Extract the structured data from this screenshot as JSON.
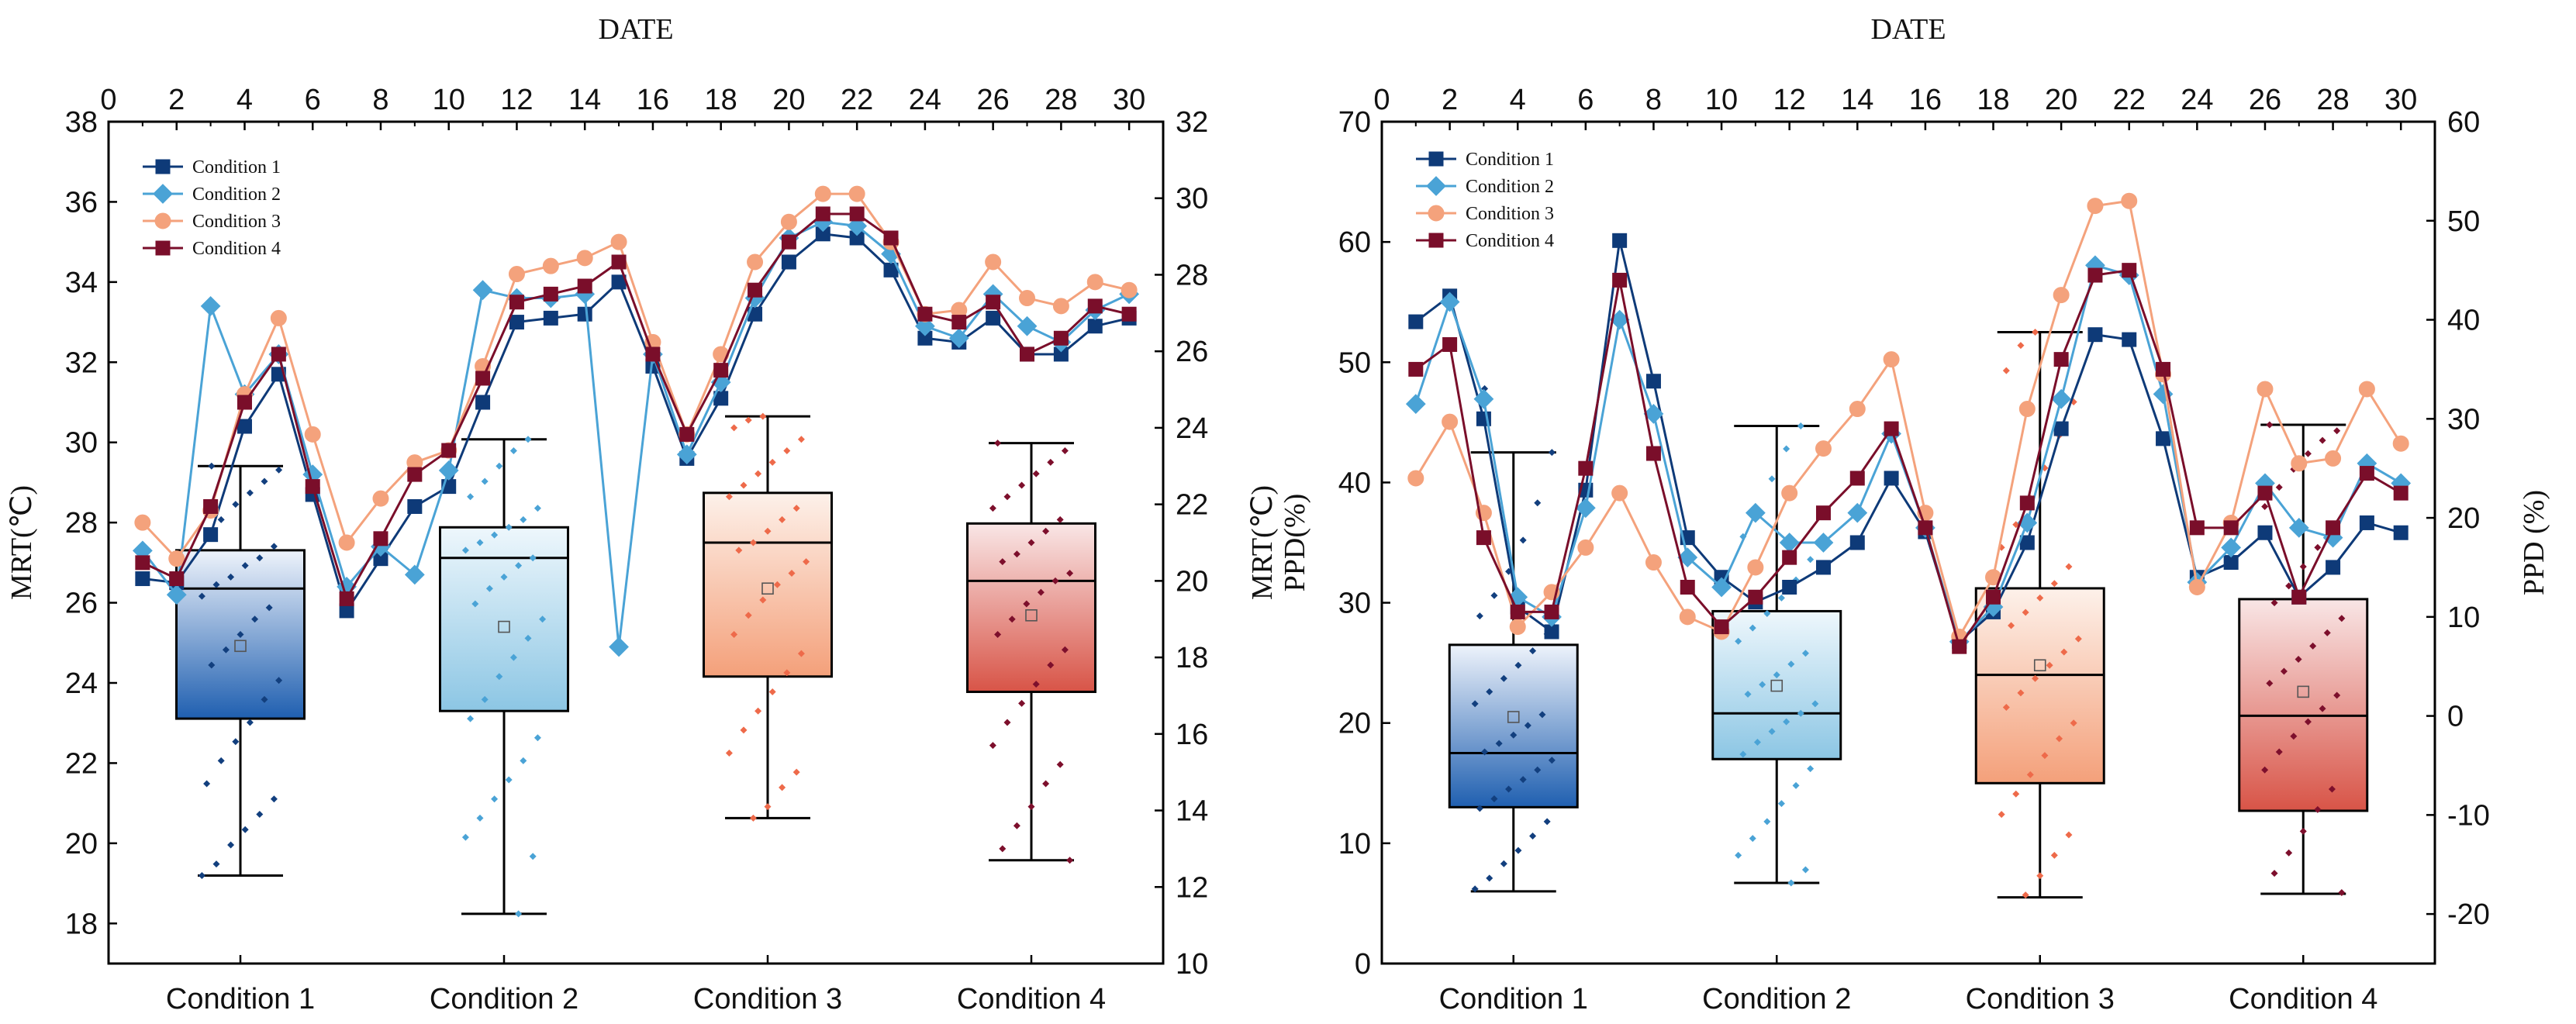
{
  "chart_data": [
    {
      "type": "box+line",
      "id": "mrt",
      "title": "",
      "top_xlabel": "DATE",
      "left_ylabel": "MRT(℃)",
      "right_ylabel": "MRT(℃)",
      "top_xlim": [
        0,
        31
      ],
      "top_xticks": [
        "0",
        "2",
        "4",
        "6",
        "8",
        "10",
        "12",
        "14",
        "16",
        "18",
        "20",
        "22",
        "24",
        "26",
        "28",
        "30"
      ],
      "left_ylim": [
        17,
        38
      ],
      "left_yticks": [
        "18",
        "20",
        "22",
        "24",
        "26",
        "28",
        "30",
        "32",
        "34",
        "36",
        "38"
      ],
      "right_ylim": [
        10,
        32
      ],
      "right_yticks": [
        "10",
        "12",
        "14",
        "16",
        "18",
        "20",
        "22",
        "24",
        "26",
        "28",
        "30",
        "32"
      ],
      "categories": [
        "Condition 1",
        "Condition 2",
        "Condition 3",
        "Condition 4"
      ],
      "box_axis": "right",
      "boxes": [
        {
          "name": "Condition 1",
          "whisker_low": 12.3,
          "q1": 16.4,
          "median": 19.8,
          "q3": 20.8,
          "whisker_high": 23.0,
          "mean": 18.3,
          "points": [
            12.3,
            12.6,
            13.1,
            13.5,
            13.9,
            14.3,
            14.7,
            15.3,
            15.8,
            16.3,
            16.9,
            17.4,
            17.8,
            18.2,
            18.6,
            19.0,
            19.3,
            19.6,
            19.9,
            20.1,
            20.4,
            20.6,
            20.9,
            21.2,
            21.6,
            22.0,
            22.3,
            22.6,
            22.9,
            23.0
          ]
        },
        {
          "name": "Condition 2",
          "whisker_low": 11.3,
          "q1": 16.6,
          "median": 20.6,
          "q3": 21.4,
          "whisker_high": 23.7,
          "mean": 18.8,
          "points": [
            11.3,
            12.8,
            13.3,
            13.8,
            14.3,
            14.8,
            15.3,
            15.9,
            16.4,
            16.9,
            17.5,
            18.0,
            18.5,
            19.0,
            19.4,
            19.8,
            20.1,
            20.4,
            20.6,
            20.8,
            21.0,
            21.2,
            21.4,
            21.6,
            21.9,
            22.2,
            22.6,
            23.0,
            23.4,
            23.7
          ]
        },
        {
          "name": "Condition 3",
          "whisker_low": 13.8,
          "q1": 17.5,
          "median": 21.0,
          "q3": 22.3,
          "whisker_high": 24.3,
          "mean": 19.8,
          "points": [
            13.8,
            14.1,
            14.6,
            15.0,
            15.5,
            16.1,
            16.6,
            17.1,
            17.6,
            18.1,
            18.6,
            19.1,
            19.5,
            19.9,
            20.2,
            20.5,
            20.8,
            21.0,
            21.3,
            21.6,
            21.9,
            22.2,
            22.5,
            22.8,
            23.1,
            23.4,
            23.7,
            24.0,
            24.2,
            24.3
          ]
        },
        {
          "name": "Condition 4",
          "whisker_low": 12.7,
          "q1": 17.1,
          "median": 20.0,
          "q3": 21.5,
          "whisker_high": 23.6,
          "mean": 19.1,
          "points": [
            12.7,
            13.0,
            13.6,
            14.1,
            14.7,
            15.2,
            15.7,
            16.3,
            16.8,
            17.3,
            17.8,
            18.2,
            18.6,
            19.0,
            19.4,
            19.7,
            20.0,
            20.2,
            20.5,
            20.7,
            21.0,
            21.3,
            21.6,
            21.9,
            22.2,
            22.5,
            22.8,
            23.1,
            23.4,
            23.6
          ]
        }
      ],
      "line_axis": "left",
      "line_x": [
        1,
        2,
        3,
        4,
        5,
        6,
        7,
        8,
        9,
        10,
        11,
        12,
        13,
        14,
        15,
        16,
        17,
        18,
        19,
        20,
        21,
        22,
        23,
        24,
        25,
        26,
        27,
        28,
        29,
        30
      ],
      "series": [
        {
          "name": "Condition 1",
          "marker": "square",
          "color": "#0e3a78",
          "values": [
            26.6,
            26.5,
            27.7,
            30.4,
            31.7,
            28.7,
            25.8,
            27.1,
            28.4,
            28.9,
            31.0,
            33.0,
            33.1,
            33.2,
            34.0,
            31.9,
            29.6,
            31.1,
            33.2,
            34.5,
            35.2,
            35.1,
            34.3,
            32.6,
            32.5,
            33.1,
            32.2,
            32.2,
            32.9,
            33.1
          ]
        },
        {
          "name": "Condition 2",
          "marker": "diamond",
          "color": "#4aa3d6",
          "values": [
            27.3,
            26.2,
            33.4,
            31.2,
            32.2,
            29.2,
            26.4,
            27.4,
            26.7,
            29.3,
            33.8,
            33.6,
            33.6,
            33.7,
            24.9,
            32.2,
            29.7,
            31.5,
            33.6,
            35.1,
            35.5,
            35.4,
            34.7,
            32.9,
            32.6,
            33.7,
            32.9,
            32.5,
            33.3,
            33.7
          ]
        },
        {
          "name": "Condition 3",
          "marker": "circle",
          "color": "#f4a27c",
          "values": [
            28.0,
            27.1,
            28.3,
            31.2,
            33.1,
            30.2,
            27.5,
            28.6,
            29.5,
            29.8,
            31.9,
            34.2,
            34.4,
            34.6,
            35.0,
            32.5,
            30.2,
            32.2,
            34.5,
            35.5,
            36.2,
            36.2,
            35.0,
            33.2,
            33.3,
            34.5,
            33.6,
            33.4,
            34.0,
            33.8
          ]
        },
        {
          "name": "Condition 4",
          "marker": "square",
          "color": "#7a0e2a",
          "values": [
            27.0,
            26.6,
            28.4,
            31.0,
            32.2,
            28.9,
            26.1,
            27.6,
            29.2,
            29.8,
            31.6,
            33.5,
            33.7,
            33.9,
            34.5,
            32.2,
            30.2,
            31.8,
            33.8,
            35.0,
            35.7,
            35.7,
            35.1,
            33.2,
            33.0,
            33.5,
            32.2,
            32.6,
            33.4,
            33.2
          ]
        }
      ],
      "legend_position": "top-left",
      "grid": false
    },
    {
      "type": "box+line",
      "id": "ppd",
      "title": "",
      "top_xlabel": "DATE",
      "left_ylabel": "PPD(%)",
      "right_ylabel": "PPD (%)",
      "top_xlim": [
        0,
        31
      ],
      "top_xticks": [
        "0",
        "2",
        "4",
        "6",
        "8",
        "10",
        "12",
        "14",
        "16",
        "18",
        "20",
        "22",
        "24",
        "26",
        "28",
        "30"
      ],
      "left_ylim": [
        0,
        70
      ],
      "left_yticks": [
        "0",
        "10",
        "20",
        "30",
        "40",
        "50",
        "60",
        "70"
      ],
      "right_ylim": [
        -25,
        60
      ],
      "right_yticks": [
        "-20",
        "-10",
        "0",
        "10",
        "20",
        "30",
        "40",
        "50",
        "60"
      ],
      "categories": [
        "Condition 1",
        "Condition 2",
        "Condition 3",
        "Condition 4"
      ],
      "box_axis": "left",
      "boxes": [
        {
          "name": "Condition 1",
          "whisker_low": 6.0,
          "q1": 13.0,
          "median": 17.5,
          "q3": 26.5,
          "whisker_high": 42.5,
          "mean": 20.5,
          "points": [
            6.2,
            7.1,
            8.3,
            9.4,
            10.6,
            11.8,
            12.9,
            13.7,
            14.5,
            15.3,
            16.1,
            16.9,
            17.6,
            18.3,
            19.0,
            19.8,
            20.7,
            21.6,
            22.6,
            23.7,
            24.8,
            26.0,
            27.4,
            28.9,
            30.6,
            32.6,
            35.2,
            38.3,
            42.5,
            47.8
          ]
        },
        {
          "name": "Condition 2",
          "whisker_low": 6.7,
          "q1": 17.0,
          "median": 20.8,
          "q3": 29.3,
          "whisker_high": 44.7,
          "mean": 23.1,
          "points": [
            6.7,
            7.8,
            9.0,
            10.4,
            11.8,
            13.3,
            14.8,
            16.2,
            17.4,
            18.4,
            19.3,
            20.1,
            20.8,
            21.6,
            22.4,
            23.2,
            24.0,
            24.9,
            25.8,
            26.8,
            27.9,
            29.1,
            30.4,
            31.9,
            33.6,
            35.5,
            37.7,
            40.3,
            42.8,
            44.7
          ]
        },
        {
          "name": "Condition 3",
          "whisker_low": 5.5,
          "q1": 15.0,
          "median": 24.0,
          "q3": 31.2,
          "whisker_high": 52.5,
          "mean": 24.8,
          "points": [
            5.7,
            7.3,
            9.0,
            10.7,
            12.4,
            14.1,
            15.7,
            17.3,
            18.7,
            20.0,
            21.3,
            22.5,
            23.7,
            24.8,
            25.9,
            27.0,
            28.1,
            29.2,
            30.4,
            31.6,
            33.0,
            34.6,
            36.5,
            38.7,
            41.2,
            43.9,
            46.7,
            49.3,
            51.4,
            52.5
          ]
        },
        {
          "name": "Condition 4",
          "whisker_low": 5.8,
          "q1": 12.7,
          "median": 20.6,
          "q3": 30.3,
          "whisker_high": 44.8,
          "mean": 22.6,
          "points": [
            5.9,
            7.5,
            9.2,
            11.0,
            12.8,
            14.5,
            16.1,
            17.6,
            18.9,
            20.1,
            21.2,
            22.3,
            23.3,
            24.3,
            25.3,
            26.4,
            27.5,
            28.7,
            30.0,
            31.4,
            33.0,
            34.6,
            36.3,
            38.0,
            39.6,
            41.1,
            42.4,
            43.5,
            44.3,
            44.8
          ]
        }
      ],
      "line_axis": "right",
      "line_x": [
        1,
        2,
        3,
        4,
        5,
        6,
        7,
        8,
        9,
        10,
        11,
        12,
        13,
        14,
        15,
        16,
        17,
        18,
        19,
        20,
        21,
        22,
        23,
        24,
        25,
        26,
        27,
        28,
        29,
        30
      ],
      "series": [
        {
          "name": "Condition 1",
          "marker": "square",
          "color": "#0e3a78",
          "values": [
            39.8,
            42.4,
            30.0,
            11.0,
            8.5,
            22.8,
            48.0,
            33.8,
            18.0,
            14.0,
            11.5,
            13.0,
            15.0,
            17.5,
            24.0,
            18.6,
            7.5,
            10.5,
            17.5,
            29.0,
            38.5,
            38.0,
            28.0,
            14.0,
            15.5,
            18.5,
            12.0,
            15.0,
            19.5,
            18.5
          ]
        },
        {
          "name": "Condition 2",
          "marker": "diamond",
          "color": "#4aa3d6",
          "values": [
            31.5,
            41.8,
            32.0,
            12.0,
            10.0,
            21.0,
            40.0,
            30.5,
            16.0,
            13.0,
            20.5,
            17.5,
            17.5,
            20.5,
            28.5,
            19.0,
            7.5,
            11.0,
            19.5,
            32.0,
            45.5,
            44.5,
            32.5,
            13.5,
            17.0,
            23.5,
            19.0,
            18.0,
            25.5,
            23.5
          ]
        },
        {
          "name": "Condition 3",
          "marker": "circle",
          "color": "#f4a27c",
          "values": [
            24.0,
            29.7,
            20.5,
            9.0,
            12.5,
            17.0,
            22.5,
            15.5,
            10.0,
            8.5,
            15.0,
            22.5,
            27.0,
            31.0,
            36.0,
            20.5,
            8.0,
            14.0,
            31.0,
            42.5,
            51.5,
            52.0,
            34.5,
            13.0,
            19.5,
            33.0,
            25.5,
            26.0,
            33.0,
            27.5
          ]
        },
        {
          "name": "Condition 4",
          "marker": "square",
          "color": "#7a0e2a",
          "values": [
            35.0,
            37.5,
            18.0,
            10.5,
            10.5,
            25.0,
            44.0,
            26.5,
            13.0,
            9.0,
            12.0,
            16.0,
            20.5,
            24.0,
            29.0,
            19.0,
            7.0,
            12.0,
            21.5,
            36.0,
            44.5,
            45.0,
            35.0,
            19.0,
            19.0,
            22.5,
            12.0,
            19.0,
            24.5,
            22.5
          ]
        }
      ],
      "legend_position": "top-left",
      "grid": false
    }
  ]
}
